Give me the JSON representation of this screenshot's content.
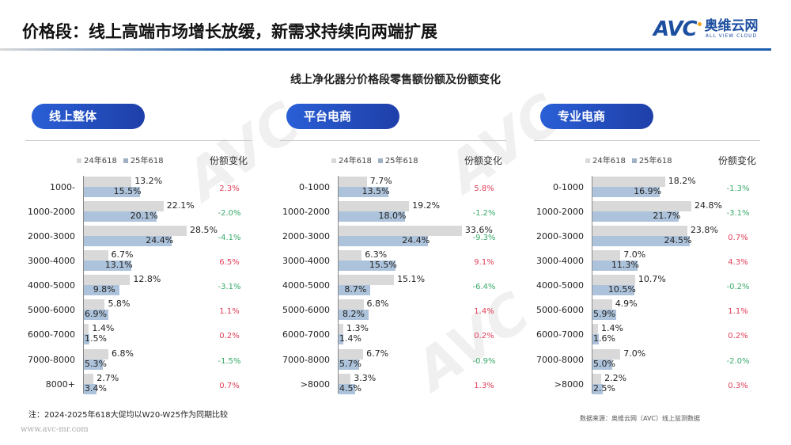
{
  "header": {
    "title": "价格段：线上高端市场增长放缓，新需求持续向两端扩展",
    "logo_text": "AVC",
    "logo_cn": "奥维云网",
    "logo_en": "ALL VIEW CLOUD"
  },
  "chart_data": [
    {
      "type": "bar",
      "title": "线上净化器分价格段零售额份额及份额变化",
      "panel": "线上整体",
      "legend": [
        "24年618",
        "25年618"
      ],
      "change_header": "份额变化",
      "categories": [
        "1000-",
        "1000-2000",
        "2000-3000",
        "3000-4000",
        "4000-5000",
        "5000-6000",
        "6000-7000",
        "7000-8000",
        "8000+"
      ],
      "series": [
        {
          "name": "24年618",
          "values": [
            13.2,
            22.1,
            28.5,
            6.7,
            12.8,
            5.8,
            1.4,
            6.8,
            2.7
          ]
        },
        {
          "name": "25年618",
          "values": [
            15.5,
            20.1,
            24.4,
            13.1,
            9.8,
            6.9,
            1.5,
            5.3,
            3.4
          ]
        }
      ],
      "change": [
        "2.3%",
        "-2.0%",
        "-4.1%",
        "6.5%",
        "-3.1%",
        "1.1%",
        "0.2%",
        "-1.5%",
        "0.7%"
      ]
    },
    {
      "type": "bar",
      "panel": "平台电商",
      "legend": [
        "24年618",
        "25年618"
      ],
      "change_header": "份额变化",
      "categories": [
        "0-1000",
        "1000-2000",
        "2000-3000",
        "3000-4000",
        "4000-5000",
        "5000-6000",
        "6000-7000",
        "7000-8000",
        ">8000"
      ],
      "series": [
        {
          "name": "24年618",
          "values": [
            7.7,
            19.2,
            33.6,
            6.3,
            15.1,
            6.8,
            1.3,
            6.7,
            3.3
          ]
        },
        {
          "name": "25年618",
          "values": [
            13.5,
            18.0,
            24.4,
            15.5,
            8.7,
            8.2,
            1.4,
            5.7,
            4.5
          ]
        }
      ],
      "change": [
        "5.8%",
        "-1.2%",
        "-9.3%",
        "9.1%",
        "-6.4%",
        "1.4%",
        "0.2%",
        "-0.9%",
        "1.3%"
      ]
    },
    {
      "type": "bar",
      "panel": "专业电商",
      "legend": [
        "24年618",
        "25年618"
      ],
      "change_header": "份额变化",
      "categories": [
        "0-1000",
        "1000-2000",
        "2000-3000",
        "3000-4000",
        "4000-5000",
        "5000-6000",
        "6000-7000",
        "7000-8000",
        ">8000"
      ],
      "series": [
        {
          "name": "24年618",
          "values": [
            18.2,
            24.8,
            23.8,
            7.0,
            10.7,
            4.9,
            1.4,
            7.0,
            2.2
          ]
        },
        {
          "name": "25年618",
          "values": [
            16.9,
            21.7,
            24.5,
            11.3,
            10.5,
            5.9,
            1.6,
            5.0,
            2.5
          ]
        }
      ],
      "change": [
        "-1.3%",
        "-3.1%",
        "0.7%",
        "4.3%",
        "-0.2%",
        "1.1%",
        "0.2%",
        "-2.0%",
        "0.3%"
      ]
    }
  ],
  "colors": {
    "bar24": "#d9d9d9",
    "bar25": "#adc3db",
    "pos": "#e0405a",
    "neg": "#3aaa6a",
    "accent": "#1d4fa0"
  },
  "footer": {
    "note": "注：2024-2025年618大促均以W20-W25作为同期比较",
    "source": "数据来源：奥维云网（AVC）线上监测数据",
    "url": "www.avc-mr.com"
  }
}
